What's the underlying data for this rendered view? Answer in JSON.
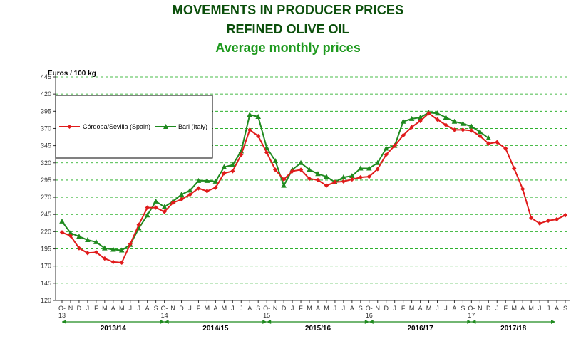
{
  "titles": {
    "line1": "MOVEMENTS IN PRODUCER PRICES",
    "line2": "REFINED OLIVE OIL",
    "line3": "Average monthly prices"
  },
  "colors": {
    "spain": "#e01b1b",
    "italy": "#1f8a1f",
    "grid": "#0fa60f",
    "axis": "#333333",
    "title_dark": "#0b4f0b",
    "title_light": "#1f9a1f"
  },
  "chart_data": {
    "type": "line",
    "ylabel": "Euros / 100 kg",
    "ylim": [
      120,
      445
    ],
    "yticks": [
      120,
      145,
      170,
      195,
      220,
      245,
      270,
      295,
      320,
      345,
      370,
      395,
      420,
      445
    ],
    "grid": "horizontal dashed",
    "legend_position": "top-left",
    "x_ticks": [
      "O- 13",
      "N",
      "D",
      "J",
      "F",
      "M",
      "A",
      "M",
      "J",
      "J",
      "A",
      "S",
      "O- 14",
      "N",
      "D",
      "J",
      "F",
      "M",
      "A",
      "M",
      "J",
      "J",
      "A",
      "S",
      "O- 15",
      "N",
      "D",
      "J",
      "F",
      "M",
      "A",
      "M",
      "J",
      "J",
      "A",
      "S",
      "O- 16",
      "N",
      "D",
      "J",
      "F",
      "M",
      "A",
      "M",
      "J",
      "J",
      "A",
      "S",
      "O- 17",
      "N",
      "D",
      "J",
      "F",
      "M",
      "A",
      "M",
      "J",
      "J",
      "A",
      "S"
    ],
    "seasons": [
      "2013/14",
      "2014/15",
      "2015/16",
      "2016/17",
      "2017/18"
    ],
    "series": [
      {
        "name": "Córdoba/Sevilla (Spain)",
        "color": "#e01b1b",
        "marker": "diamond",
        "values": [
          219,
          214,
          196,
          189,
          190,
          181,
          176,
          175,
          202,
          230,
          255,
          255,
          249,
          262,
          267,
          274,
          283,
          279,
          284,
          305,
          308,
          332,
          368,
          359,
          335,
          310,
          296,
          308,
          310,
          297,
          295,
          287,
          292,
          293,
          296,
          299,
          300,
          311,
          332,
          345,
          360,
          372,
          381,
          392,
          383,
          375,
          368,
          368,
          367,
          359,
          348,
          350,
          341,
          312,
          282,
          240,
          232,
          236,
          238,
          244
        ]
      },
      {
        "name": "Bari (Italy)",
        "color": "#1f8a1f",
        "marker": "triangle",
        "values": [
          235,
          218,
          213,
          208,
          205,
          196,
          194,
          193,
          201,
          225,
          244,
          264,
          256,
          264,
          274,
          280,
          294,
          294,
          293,
          314,
          317,
          337,
          390,
          387,
          342,
          323,
          287,
          310,
          320,
          310,
          304,
          300,
          292,
          299,
          301,
          312,
          312,
          320,
          341,
          345,
          380,
          384,
          386,
          393,
          392,
          386,
          380,
          377,
          373,
          365,
          356,
          null,
          null,
          null,
          null,
          null,
          null,
          null,
          null,
          null
        ]
      }
    ]
  }
}
